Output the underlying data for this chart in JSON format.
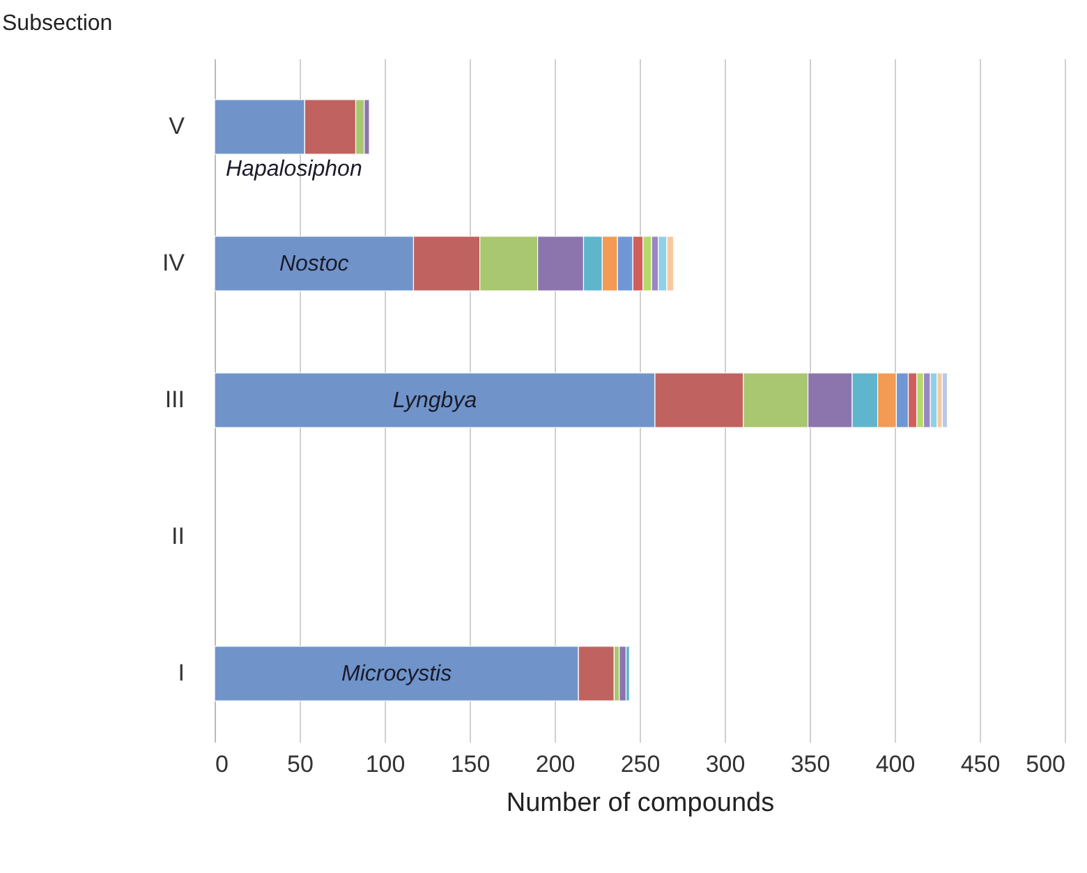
{
  "chart_data": {
    "type": "bar",
    "orientation": "horizontal",
    "stacked": true,
    "categories": [
      "V",
      "IV",
      "III",
      "II",
      "I"
    ],
    "series": [
      {
        "color": "#7094c9",
        "values": [
          53,
          117,
          259,
          null,
          214
        ]
      },
      {
        "color": "#c0625f",
        "values": [
          30,
          39,
          52,
          null,
          21
        ]
      },
      {
        "color": "#a9c670",
        "values": [
          5,
          34,
          38,
          null,
          3
        ]
      },
      {
        "color": "#8c75ad",
        "values": [
          3,
          27,
          26,
          null,
          4
        ]
      },
      {
        "color": "#5fb5cc",
        "values": [
          null,
          11,
          15,
          null,
          2
        ]
      },
      {
        "color": "#f39a55",
        "values": [
          null,
          9,
          11,
          null,
          null
        ]
      },
      {
        "color": "#6f97d6",
        "values": [
          null,
          9,
          7,
          null,
          null
        ]
      },
      {
        "color": "#cf5f5c",
        "values": [
          null,
          6,
          5,
          null,
          null
        ]
      },
      {
        "color": "#b5d96a",
        "values": [
          null,
          5,
          4,
          null,
          null
        ]
      },
      {
        "color": "#9a86c4",
        "values": [
          null,
          4,
          4,
          null,
          null
        ]
      },
      {
        "color": "#8fd0e6",
        "values": [
          null,
          5,
          4,
          null,
          null
        ]
      },
      {
        "color": "#f7c8a0",
        "values": [
          null,
          4,
          3,
          null,
          null
        ]
      },
      {
        "color": "#b9c9e8",
        "values": [
          null,
          null,
          3,
          null,
          null
        ]
      }
    ],
    "xlim": [
      0,
      500
    ],
    "xticks": [
      0,
      50,
      100,
      150,
      200,
      250,
      300,
      350,
      400,
      450,
      500
    ],
    "xlabel": "Number of compounds",
    "ylabel": "Subsection",
    "grid": "x",
    "legend": false,
    "annotations": [
      "Hapalosiphon",
      "Nostoc",
      "Lyngbya",
      "Microcystis"
    ]
  }
}
